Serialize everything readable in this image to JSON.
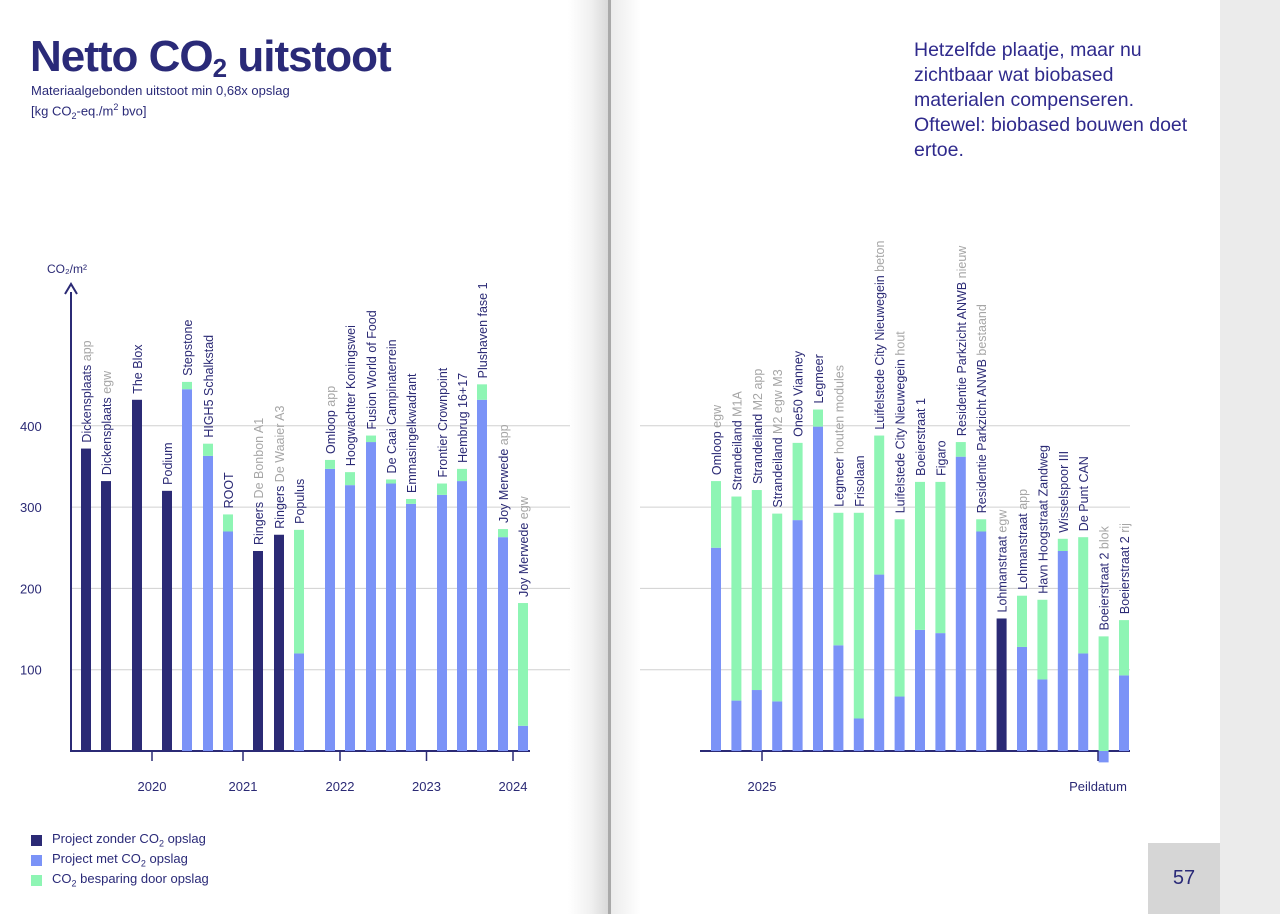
{
  "title": {
    "main": "Netto CO",
    "sub": "2",
    "rest": " uitstoot"
  },
  "subtitle": {
    "line1": "Materiaalgebonden uitstoot min 0,68x opslag",
    "line2_pre": "[kg CO",
    "line2_sub": "2",
    "line2_mid": "-eq./m",
    "line2_sup": "2",
    "line2_post": " bvo]"
  },
  "side_text": "Hetzelfde plaatje, maar nu zichtbaar wat biobased materialen compenseren. Oftewel: biobased bouwen doet ertoe.",
  "legend": [
    {
      "pre": "Project zonder CO",
      "sub": "2",
      "post": " opslag",
      "color": "#2b2a75"
    },
    {
      "pre": "Project met CO",
      "sub": "2",
      "post": " opslag",
      "color": "#7b93f7"
    },
    {
      "pre": "CO",
      "sub": "2",
      "post": " besparing door opslag",
      "color": "#8ef5b4"
    }
  ],
  "page_number": "57",
  "colors": {
    "zonder": "#2b2a75",
    "met": "#7b93f7",
    "besparing": "#8ef5b4",
    "axis": "#2b2a75",
    "grid": "#d0d0d0",
    "label_gray": "#a6a6a6"
  },
  "chart_data": {
    "type": "bar",
    "stacked": true,
    "ylabel": "CO₂/m²",
    "yticks": [
      100,
      200,
      300,
      400
    ],
    "ylim": [
      0,
      560
    ],
    "grid": true,
    "series_names": [
      "Project zonder CO₂ opslag",
      "Project met CO₂ opslag",
      "CO₂ besparing door opslag"
    ],
    "years": [
      {
        "label": "2020",
        "after_bar": 2
      },
      {
        "label": "2021",
        "after_bar": 6
      },
      {
        "label": "2022",
        "after_bar": 10
      },
      {
        "label": "2023",
        "after_bar": 14
      },
      {
        "label": "2024",
        "after_bar": 18
      }
    ],
    "year_2025": "2025",
    "peildatum": "Peildatum",
    "panels": [
      {
        "bars": [
          {
            "name": "Dickensplaats",
            "suffix": "app",
            "type": "zonder",
            "value": 372,
            "saving": 0
          },
          {
            "name": "Dickensplaats",
            "suffix": "egw",
            "type": "zonder",
            "value": 332,
            "saving": 0
          },
          {
            "name": "The Blox",
            "suffix": "",
            "type": "zonder",
            "value": 432,
            "saving": 0
          },
          {
            "name": "Podium",
            "suffix": "",
            "type": "zonder",
            "value": 320,
            "saving": 0
          },
          {
            "name": "Stepstone",
            "suffix": "",
            "type": "met",
            "value": 445,
            "saving": 9
          },
          {
            "name": "HIGH5 Schalkstad",
            "suffix": "",
            "type": "met",
            "value": 363,
            "saving": 15
          },
          {
            "name": "ROOT",
            "suffix": "",
            "type": "met",
            "value": 270,
            "saving": 21
          },
          {
            "name": "Ringers",
            "suffix": "De Bonbon A1",
            "type": "zonder",
            "value": 246,
            "saving": 0
          },
          {
            "name": "Ringers",
            "suffix": "De Waaier A3",
            "type": "zonder",
            "value": 266,
            "saving": 0
          },
          {
            "name": "Populus",
            "suffix": "",
            "type": "met",
            "value": 120,
            "saving": 152
          },
          {
            "name": "Omloop",
            "suffix": "app",
            "type": "met",
            "value": 347,
            "saving": 11
          },
          {
            "name": "Hoogwachter Koningswei",
            "suffix": "",
            "type": "met",
            "value": 327,
            "saving": 16
          },
          {
            "name": "Fusion World of Food",
            "suffix": "",
            "type": "met",
            "value": 380,
            "saving": 8
          },
          {
            "name": "De Caai Campinaterrein",
            "suffix": "",
            "type": "met",
            "value": 329,
            "saving": 5
          },
          {
            "name": "Emmasingelkwadrant",
            "suffix": "",
            "type": "met",
            "value": 304,
            "saving": 6
          },
          {
            "name": "Frontier Crownpoint",
            "suffix": "",
            "type": "met",
            "value": 315,
            "saving": 14
          },
          {
            "name": "Hembrug 16+17",
            "suffix": "",
            "type": "met",
            "value": 332,
            "saving": 15
          },
          {
            "name": "Plushaven fase 1",
            "suffix": "",
            "type": "met",
            "value": 432,
            "saving": 19
          },
          {
            "name": "Joy Merwede",
            "suffix": "app",
            "type": "met",
            "value": 263,
            "saving": 10
          },
          {
            "name": "Joy Merwede",
            "suffix": "egw",
            "type": "met",
            "value": 31,
            "saving": 151
          }
        ]
      },
      {
        "bars": [
          {
            "name": "Omloop",
            "suffix": "egw",
            "type": "met",
            "value": 250,
            "saving": 82
          },
          {
            "name": "Strandeiland",
            "suffix": "M1A",
            "type": "met",
            "value": 62,
            "saving": 251
          },
          {
            "name": "Strandeiland",
            "suffix": "M2 app",
            "type": "met",
            "value": 75,
            "saving": 246
          },
          {
            "name": "Strandeiland",
            "suffix": "M2 egw M3",
            "type": "met",
            "value": 61,
            "saving": 231
          },
          {
            "name": "One50 Vianney",
            "suffix": "",
            "type": "met",
            "value": 284,
            "saving": 95
          },
          {
            "name": "Legmeer",
            "suffix": "",
            "type": "met",
            "value": 399,
            "saving": 21
          },
          {
            "name": "Legmeer",
            "suffix": "houten modules",
            "type": "met",
            "value": 130,
            "saving": 163
          },
          {
            "name": "Frisolaan",
            "suffix": "",
            "type": "met",
            "value": 40,
            "saving": 253
          },
          {
            "name": "Luifelstede City Nieuwegein",
            "suffix": "beton",
            "type": "met",
            "value": 217,
            "saving": 171
          },
          {
            "name": "Luifelstede City Nieuwegein",
            "suffix": "hout",
            "type": "met",
            "value": 67,
            "saving": 218
          },
          {
            "name": "Boeierstraat 1",
            "suffix": "",
            "type": "met",
            "value": 149,
            "saving": 182
          },
          {
            "name": "Figaro",
            "suffix": "",
            "type": "met",
            "value": 145,
            "saving": 186
          },
          {
            "name": "Residentie Parkzicht ANWB",
            "suffix": "nieuw",
            "type": "met",
            "value": 362,
            "saving": 18
          },
          {
            "name": "Residentie Parkzicht ANWB",
            "suffix": "bestaand",
            "type": "met",
            "value": 270,
            "saving": 15
          },
          {
            "name": "Lohmanstraat",
            "suffix": "egw",
            "type": "zonder",
            "value": 163,
            "saving": 0
          },
          {
            "name": "Lohmanstraat",
            "suffix": "app",
            "type": "met",
            "value": 128,
            "saving": 63
          },
          {
            "name": "Havn Hoogstraat Zandweg",
            "suffix": "",
            "type": "met",
            "value": 88,
            "saving": 98
          },
          {
            "name": "Wisselspoor III",
            "suffix": "",
            "type": "met",
            "value": 246,
            "saving": 15
          },
          {
            "name": "De Punt CAN",
            "suffix": "",
            "type": "met",
            "value": 120,
            "saving": 143
          },
          {
            "name": "Boeierstraat 2",
            "suffix": "blok",
            "type": "met",
            "value": -14,
            "saving": 155
          },
          {
            "name": "Boeierstraat 2",
            "suffix": "rij",
            "type": "met",
            "value": 93,
            "saving": 68
          }
        ]
      }
    ]
  }
}
